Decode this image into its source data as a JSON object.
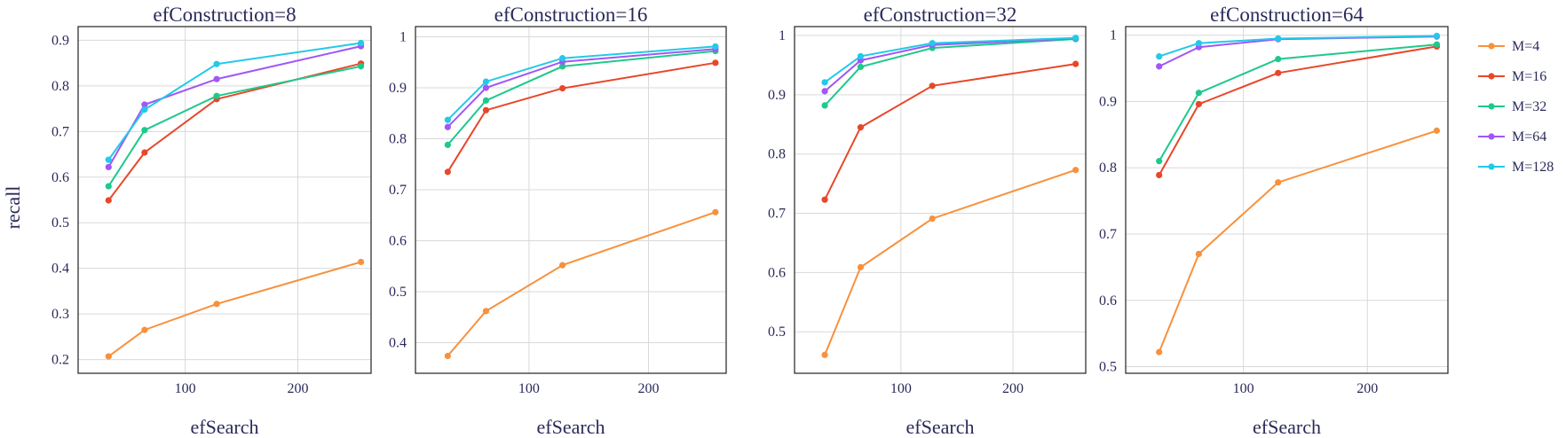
{
  "ylabel": "recall",
  "xlabel": "efSearch",
  "series_meta": [
    {
      "name": "M=4",
      "color": "#f7913d"
    },
    {
      "name": "M=16",
      "color": "#e8472a"
    },
    {
      "name": "M=32",
      "color": "#1ec98b"
    },
    {
      "name": "M=64",
      "color": "#a057f5"
    },
    {
      "name": "M=128",
      "color": "#22c9e8"
    }
  ],
  "chart_data": [
    {
      "type": "line",
      "title": "efConstruction=8",
      "xlabel": "efSearch",
      "ylabel": "recall",
      "x": [
        32,
        64,
        128,
        256
      ],
      "xlim": [
        5,
        265
      ],
      "ylim": [
        0.17,
        0.93
      ],
      "xticks": [
        100,
        200
      ],
      "yticks": [
        0.2,
        0.3,
        0.4,
        0.5,
        0.6,
        0.7,
        0.8,
        0.9
      ],
      "ytick_labels": [
        "0.2",
        "0.3",
        "0.4",
        "0.5",
        "0.6",
        "0.7",
        "0.8",
        "0.9"
      ],
      "grid": true,
      "series": [
        {
          "name": "M=4",
          "values": [
            0.207,
            0.265,
            0.322,
            0.414
          ]
        },
        {
          "name": "M=16",
          "values": [
            0.549,
            0.654,
            0.771,
            0.849
          ]
        },
        {
          "name": "M=32",
          "values": [
            0.58,
            0.703,
            0.778,
            0.843
          ]
        },
        {
          "name": "M=64",
          "values": [
            0.622,
            0.759,
            0.815,
            0.887
          ]
        },
        {
          "name": "M=128",
          "values": [
            0.638,
            0.748,
            0.848,
            0.894
          ]
        }
      ]
    },
    {
      "type": "line",
      "title": "efConstruction=16",
      "xlabel": "efSearch",
      "ylabel": "",
      "x": [
        32,
        64,
        128,
        256
      ],
      "xlim": [
        5,
        265
      ],
      "ylim": [
        0.34,
        1.02
      ],
      "xticks": [
        100,
        200
      ],
      "yticks": [
        0.4,
        0.5,
        0.6,
        0.7,
        0.8,
        0.9,
        1.0
      ],
      "ytick_labels": [
        "0.4",
        "0.5",
        "0.6",
        "0.7",
        "0.8",
        "0.9",
        "1"
      ],
      "grid": true,
      "series": [
        {
          "name": "M=4",
          "values": [
            0.374,
            0.462,
            0.552,
            0.656
          ]
        },
        {
          "name": "M=16",
          "values": [
            0.735,
            0.856,
            0.899,
            0.949
          ]
        },
        {
          "name": "M=32",
          "values": [
            0.788,
            0.875,
            0.942,
            0.972
          ]
        },
        {
          "name": "M=64",
          "values": [
            0.823,
            0.9,
            0.951,
            0.976
          ]
        },
        {
          "name": "M=128",
          "values": [
            0.837,
            0.912,
            0.958,
            0.981
          ]
        }
      ]
    },
    {
      "type": "line",
      "title": "efConstruction=32",
      "xlabel": "efSearch",
      "ylabel": "",
      "x": [
        32,
        64,
        128,
        256
      ],
      "xlim": [
        5,
        265
      ],
      "ylim": [
        0.43,
        1.015
      ],
      "xticks": [
        100,
        200
      ],
      "yticks": [
        0.5,
        0.6,
        0.7,
        0.8,
        0.9,
        1.0
      ],
      "ytick_labels": [
        "0.5",
        "0.6",
        "0.7",
        "0.8",
        "0.9",
        "1"
      ],
      "grid": true,
      "series": [
        {
          "name": "M=4",
          "values": [
            0.461,
            0.609,
            0.691,
            0.773
          ]
        },
        {
          "name": "M=16",
          "values": [
            0.723,
            0.845,
            0.915,
            0.952
          ]
        },
        {
          "name": "M=32",
          "values": [
            0.882,
            0.947,
            0.979,
            0.994
          ]
        },
        {
          "name": "M=64",
          "values": [
            0.906,
            0.958,
            0.984,
            0.995
          ]
        },
        {
          "name": "M=128",
          "values": [
            0.921,
            0.965,
            0.987,
            0.996
          ]
        }
      ]
    },
    {
      "type": "line",
      "title": "efConstruction=64",
      "xlabel": "efSearch",
      "ylabel": "",
      "x": [
        32,
        64,
        128,
        256
      ],
      "xlim": [
        5,
        265
      ],
      "ylim": [
        0.49,
        1.013
      ],
      "xticks": [
        100,
        200
      ],
      "yticks": [
        0.5,
        0.6,
        0.7,
        0.8,
        0.9,
        1.0
      ],
      "ytick_labels": [
        "0.5",
        "0.6",
        "0.7",
        "0.8",
        "0.9",
        "1"
      ],
      "grid": true,
      "series": [
        {
          "name": "M=4",
          "values": [
            0.522,
            0.67,
            0.778,
            0.856
          ]
        },
        {
          "name": "M=16",
          "values": [
            0.789,
            0.896,
            0.943,
            0.983
          ]
        },
        {
          "name": "M=32",
          "values": [
            0.81,
            0.913,
            0.964,
            0.986
          ]
        },
        {
          "name": "M=64",
          "values": [
            0.953,
            0.982,
            0.994,
            0.998
          ]
        },
        {
          "name": "M=128",
          "values": [
            0.968,
            0.988,
            0.995,
            0.999
          ]
        }
      ]
    }
  ],
  "legend": {
    "position": "right",
    "items": [
      "M=4",
      "M=16",
      "M=32",
      "M=64",
      "M=128"
    ]
  }
}
